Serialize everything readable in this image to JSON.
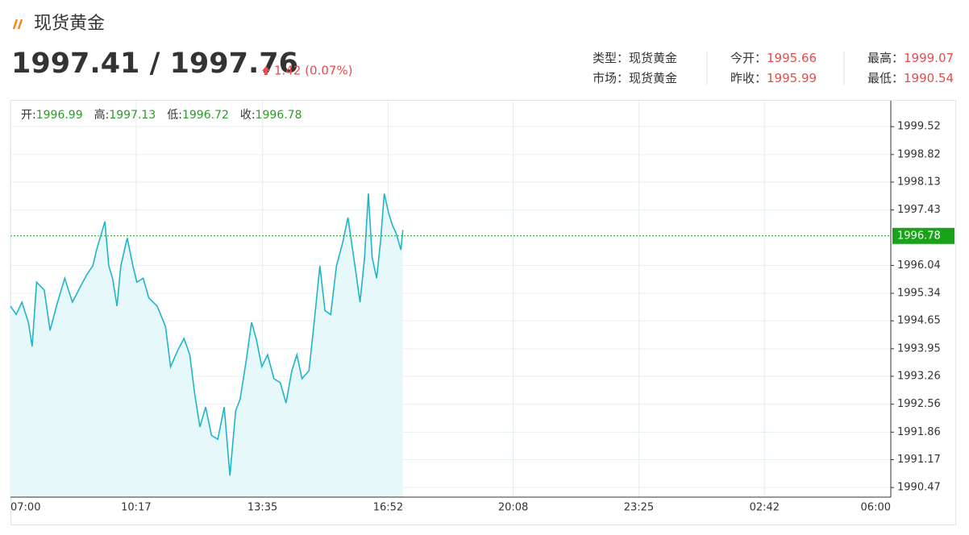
{
  "header": {
    "title": "现货黄金",
    "price": "1997.41 / 1997.76",
    "change": "1.42 (0.07%)"
  },
  "info": [
    {
      "label": "类型：",
      "value": "现货黄金"
    },
    {
      "label": "今开：",
      "value": 1995.66
    },
    {
      "label": "最高：",
      "value": 1999.07
    },
    {
      "label": "市场：",
      "value": "现货黄金"
    },
    {
      "label": "昨收：",
      "value": 1995.99
    },
    {
      "label": "最低：",
      "value": 1990.54
    }
  ],
  "ohlc": [
    {
      "label": "开:",
      "value": 1996.99
    },
    {
      "label": "高:",
      "value": 1997.13
    },
    {
      "label": "低:",
      "value": 1996.72
    },
    {
      "label": "收:",
      "value": 1996.78
    }
  ],
  "chart_data": {
    "type": "line",
    "color": "#1fb5c9",
    "area_color": "#e7f8fa",
    "grid": true,
    "last_price": 1996.78,
    "last_color": "#1aa31a",
    "x": [
      0,
      9,
      18,
      28,
      34,
      41,
      53,
      62,
      72,
      85,
      97,
      110,
      120,
      129,
      135,
      148,
      154,
      160,
      167,
      173,
      183,
      192,
      198,
      208,
      217,
      230,
      243,
      251,
      262,
      272,
      281,
      289,
      297,
      306,
      315,
      325,
      335,
      344,
      353,
      360,
      369,
      378,
      385,
      394,
      403,
      413,
      423,
      432,
      441,
      449,
      457,
      468,
      476,
      485,
      493,
      502,
      511,
      521,
      529,
      540,
      548,
      555,
      561,
      567,
      574,
      580,
      586,
      593,
      599,
      605,
      612,
      615
    ],
    "values": [
      1995.02,
      1994.81,
      1995.12,
      1994.61,
      1994.01,
      1995.62,
      1995.42,
      1994.41,
      1995.02,
      1995.72,
      1995.12,
      1995.52,
      1995.82,
      1996.03,
      1996.43,
      1997.14,
      1996.03,
      1995.72,
      1995.02,
      1996.03,
      1996.73,
      1996.03,
      1995.62,
      1995.72,
      1995.22,
      1995.02,
      1994.51,
      1993.5,
      1993.9,
      1994.21,
      1993.8,
      1992.79,
      1991.99,
      1992.49,
      1991.78,
      1991.68,
      1992.49,
      1990.77,
      1992.39,
      1992.69,
      1993.6,
      1994.61,
      1994.21,
      1993.5,
      1993.8,
      1993.2,
      1993.1,
      1992.59,
      1993.4,
      1993.8,
      1993.2,
      1993.4,
      1994.61,
      1996.03,
      1994.91,
      1994.81,
      1996.03,
      1996.63,
      1997.24,
      1996.03,
      1995.12,
      1996.23,
      1997.84,
      1996.23,
      1995.72,
      1996.63,
      1997.84,
      1997.34,
      1997.04,
      1996.83,
      1996.43,
      1996.93
    ],
    "xlim": [
      0,
      1380
    ],
    "xticks": [
      {
        "value": 0,
        "label": "07:00"
      },
      {
        "value": 197,
        "label": "10:17"
      },
      {
        "value": 395,
        "label": "13:35"
      },
      {
        "value": 592,
        "label": "16:52"
      },
      {
        "value": 788,
        "label": "20:08"
      },
      {
        "value": 985,
        "label": "23:25"
      },
      {
        "value": 1182,
        "label": "02:42"
      },
      {
        "value": 1380,
        "label": "06:00"
      }
    ],
    "ylim": [
      1990.23,
      2000.17
    ],
    "yticks": [
      1990.47,
      1991.17,
      1991.86,
      1992.56,
      1993.26,
      1993.95,
      1994.65,
      1995.34,
      1996.04,
      1997.43,
      1998.13,
      1998.82,
      1999.52
    ]
  }
}
